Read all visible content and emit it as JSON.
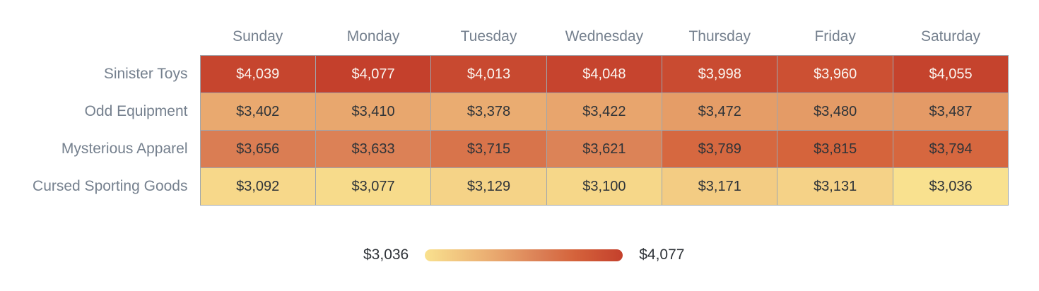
{
  "chart_data": {
    "type": "heatmap",
    "title": "",
    "categories": [
      "Sunday",
      "Monday",
      "Tuesday",
      "Wednesday",
      "Thursday",
      "Friday",
      "Saturday"
    ],
    "rows": [
      {
        "label": "Sinister Toys",
        "values": [
          4039,
          4077,
          4013,
          4048,
          3998,
          3960,
          4055
        ]
      },
      {
        "label": "Odd Equipment",
        "values": [
          3402,
          3410,
          3378,
          3422,
          3472,
          3480,
          3487
        ]
      },
      {
        "label": "Mysterious Apparel",
        "values": [
          3656,
          3633,
          3715,
          3621,
          3789,
          3815,
          3794
        ]
      },
      {
        "label": "Cursed Sporting Goods",
        "values": [
          3092,
          3077,
          3129,
          3100,
          3171,
          3131,
          3036
        ]
      }
    ],
    "value_prefix": "$",
    "scale": {
      "min": 3036,
      "max": 4077,
      "stops": [
        {
          "t": 0.0,
          "color": "#F9E18F"
        },
        {
          "t": 0.35,
          "color": "#E9A96F"
        },
        {
          "t": 0.6,
          "color": "#DA7C53"
        },
        {
          "t": 0.75,
          "color": "#D5643C"
        },
        {
          "t": 1.0,
          "color": "#C4402C"
        }
      ],
      "light_text_threshold": 0.8
    },
    "legend": {
      "min_label": "$3,036",
      "max_label": "$4,077",
      "position": "bottom"
    },
    "grid": true
  },
  "colors": {
    "axis_label": "#75808E",
    "grid_line": "#9FA6AD",
    "cell_text_dark": "#2E3338",
    "cell_text_light": "#FBF6F1",
    "legend_text": "#2F3338",
    "background": "#FFFFFF"
  }
}
